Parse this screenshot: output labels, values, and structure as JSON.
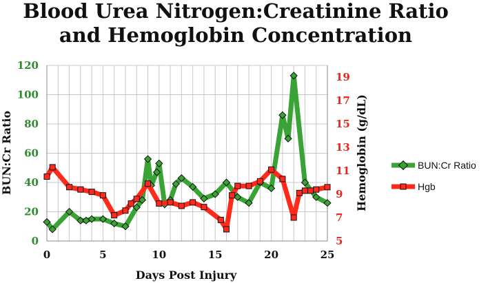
{
  "chart_data": {
    "type": "line",
    "title": [
      "Blood Urea Nitrogen:Creatinine Ratio",
      "and Hemoglobin Concentration"
    ],
    "xlabel": "Days Post Injury",
    "ylabel_left": "BUN:Cr Ratio",
    "ylabel_right": "Hemoglobin (g/dL)",
    "xlim": [
      0,
      25
    ],
    "ylim_left": [
      0,
      120
    ],
    "ylim_right": [
      5,
      20
    ],
    "x_ticks": [
      0,
      5,
      10,
      15,
      20,
      25
    ],
    "y_ticks_left": [
      0,
      20,
      40,
      60,
      80,
      100,
      120
    ],
    "y_ticks_right": [
      5,
      7,
      9,
      11,
      13,
      15,
      17,
      19
    ],
    "grid": true,
    "legend_position": "right",
    "colors": {
      "bun": "#3aa335",
      "hgb": "#ff2a1a",
      "left_ticks": "#2e8b2e",
      "right_ticks": "#e8261c",
      "grid": "#c8c8c8"
    },
    "series": [
      {
        "name": "BUN:Cr Ratio",
        "axis": "left",
        "marker": "diamond",
        "x": [
          0,
          0.5,
          2,
          3,
          3.5,
          4,
          5,
          6,
          7,
          8,
          8.5,
          9,
          9.3,
          9.8,
          10,
          10.5,
          11,
          11.5,
          12,
          13,
          14,
          15,
          16,
          17,
          18,
          19,
          20,
          21,
          21.5,
          22,
          23,
          24,
          25
        ],
        "values": [
          13,
          8,
          20,
          14,
          14,
          15,
          15,
          12,
          10,
          23,
          28,
          56,
          38,
          47,
          53,
          25,
          28,
          39,
          43,
          37,
          29,
          32,
          40,
          30,
          26,
          40,
          36,
          86,
          70,
          113,
          40,
          30,
          26
        ]
      },
      {
        "name": "Hgb",
        "axis": "right",
        "marker": "square",
        "x": [
          0,
          0.5,
          2,
          3,
          4,
          5,
          6,
          7,
          7.5,
          8,
          9,
          10,
          11,
          12,
          13,
          14,
          15.5,
          16,
          16.5,
          17,
          18,
          19,
          20,
          21,
          22,
          22.5,
          23,
          23.5,
          24,
          25
        ],
        "values": [
          10.5,
          11.3,
          9.6,
          9.4,
          9.2,
          8.9,
          7.2,
          7.6,
          8.2,
          8.6,
          9.9,
          8.2,
          8.3,
          8.0,
          8.3,
          7.9,
          6.8,
          6.0,
          8.9,
          9.7,
          9.7,
          10.1,
          11.1,
          10.3,
          7.0,
          9.1,
          9.3,
          9.3,
          9.4,
          9.6
        ]
      }
    ]
  }
}
